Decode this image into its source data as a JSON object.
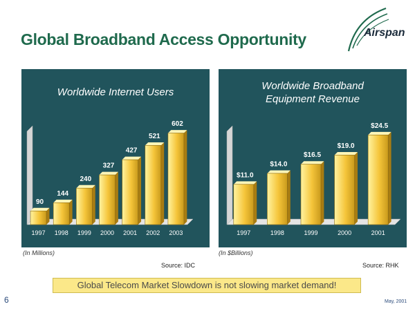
{
  "title": "Global Broadband Access Opportunity",
  "logo_text": "Airspan",
  "chart_data": [
    {
      "type": "bar",
      "title": "Worldwide Internet Users",
      "categories": [
        "1997",
        "1998",
        "1999",
        "2000",
        "2001",
        "2002",
        "2003"
      ],
      "values": [
        90,
        144,
        240,
        327,
        427,
        521,
        602
      ],
      "labels": [
        "90",
        "144",
        "240",
        "327",
        "427",
        "521",
        "602"
      ],
      "ylim": [
        0,
        650
      ],
      "unit_note": "(In Millions)",
      "source": "Source: IDC"
    },
    {
      "type": "bar",
      "title": "Worldwide Broadband Equipment Revenue",
      "title_lines": [
        "Worldwide Broadband",
        "Equipment Revenue"
      ],
      "categories": [
        "1997",
        "1998",
        "1999",
        "2000",
        "2001"
      ],
      "values": [
        11.0,
        14.0,
        16.5,
        19.0,
        24.5
      ],
      "labels": [
        "$11.0",
        "$14.0",
        "$16.5",
        "$19.0",
        "$24.5"
      ],
      "ylim": [
        0,
        27
      ],
      "unit_note": "(In $Billions)",
      "source": "Source: RHK"
    }
  ],
  "banner": "Global Telecom Market Slowdown is not slowing market demand!",
  "page_number": "6",
  "date": "May, 2001",
  "colors": {
    "title": "#1f6a4d",
    "panel": "#21545c",
    "bar_light": "#fff3a0",
    "bar_mid": "#f5c53a",
    "bar_dark": "#c99a1c",
    "banner": "#fbe889"
  }
}
